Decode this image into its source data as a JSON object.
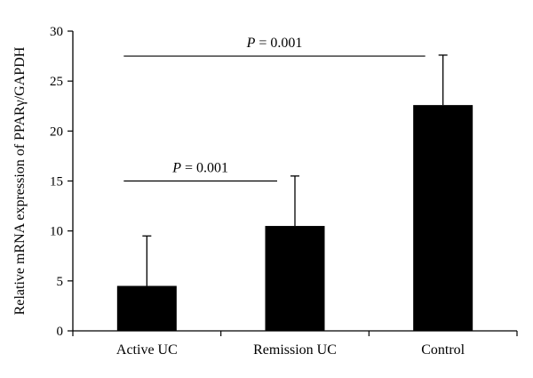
{
  "chart_data": {
    "type": "bar",
    "categories": [
      "Active UC",
      "Remission UC",
      "Control"
    ],
    "values": [
      4.5,
      10.5,
      22.6
    ],
    "error_bars_upper": [
      5.0,
      5.0,
      5.0
    ],
    "ylabel": "Relative mRNA expression of PPARγ/GAPDH",
    "xlabel": "",
    "ylim": [
      0,
      30
    ],
    "yticks": [
      0,
      5,
      10,
      15,
      20,
      25,
      30
    ],
    "grid": false,
    "bar_color": "#000000",
    "annotations": [
      {
        "from": "Active UC",
        "to": "Remission UC",
        "level": 15,
        "p_symbol": "P",
        "p_rest": " = 0.001"
      },
      {
        "from": "Active UC",
        "to": "Control",
        "level": 27.5,
        "p_symbol": "P",
        "p_rest": " = 0.001"
      }
    ]
  }
}
